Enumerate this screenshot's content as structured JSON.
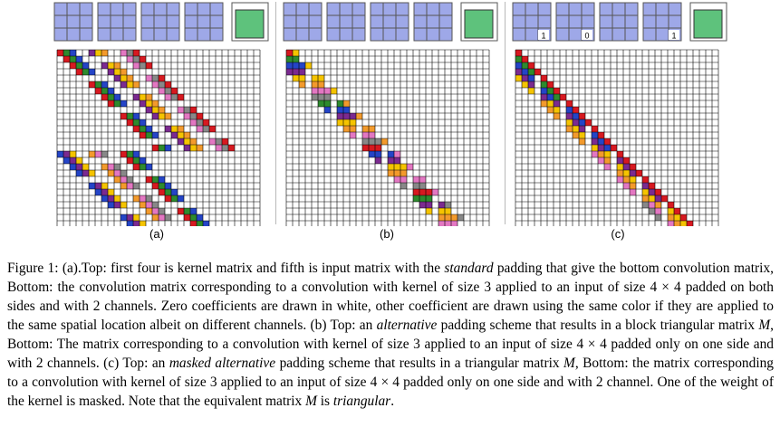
{
  "figure": {
    "panels": [
      {
        "label": "(a)",
        "kernel_marks": [
          "",
          "",
          "",
          ""
        ],
        "scheme": "standard"
      },
      {
        "label": "(b)",
        "kernel_marks": [
          "",
          "",
          "",
          ""
        ],
        "scheme": "alternative"
      },
      {
        "label": "(c)",
        "kernel_marks": [
          "1",
          "0",
          "",
          "1"
        ],
        "scheme": "masked"
      }
    ],
    "colors": {
      "kernel": "#9ea8e8",
      "input": "#5ec27c",
      "grid_line": "#000000",
      "palette": [
        "#d71920",
        "#2e8b2e",
        "#2444c7",
        "#7b2a90",
        "#f5c400",
        "#f39a2c",
        "#e377c2",
        "#888888"
      ]
    }
  },
  "caption": {
    "lead": "Figure 1: (a).Top: first four is kernel matrix and fifth is input matrix with the ",
    "em1": "standard",
    "p1": " padding that give the bottom convolution matrix, Bottom: the convolution matrix corresponding to a convolution with kernel of size 3 applied to an input of size 4 × 4 padded on both sides and with 2 channels. Zero coefficients are drawn in white, other coefficient are drawn using the same color if they are applied to the same spatial location albeit on different channels. (b) Top: an ",
    "em2": "alternative",
    "p2": " padding scheme that results in a block triangular matrix ",
    "em3": "M",
    "p3": ", Bottom: The matrix corresponding to a convolution with kernel of size 3 applied to an input of size 4 × 4 padded only on one side and with 2 channels. (c) Top: an ",
    "em4": "masked alternative",
    "p4": " padding scheme that results in a triangular matrix ",
    "em5": "M",
    "p5": ", Bottom: the matrix corresponding to a convolution with kernel of size 3 applied to an input of size 4 × 4 padded only on one side and with 2 channel. One of the weight of the kernel is masked. Note that the equivalent matrix ",
    "em6": "M",
    "p6": " is ",
    "em7": "triangular",
    "p7": "."
  }
}
